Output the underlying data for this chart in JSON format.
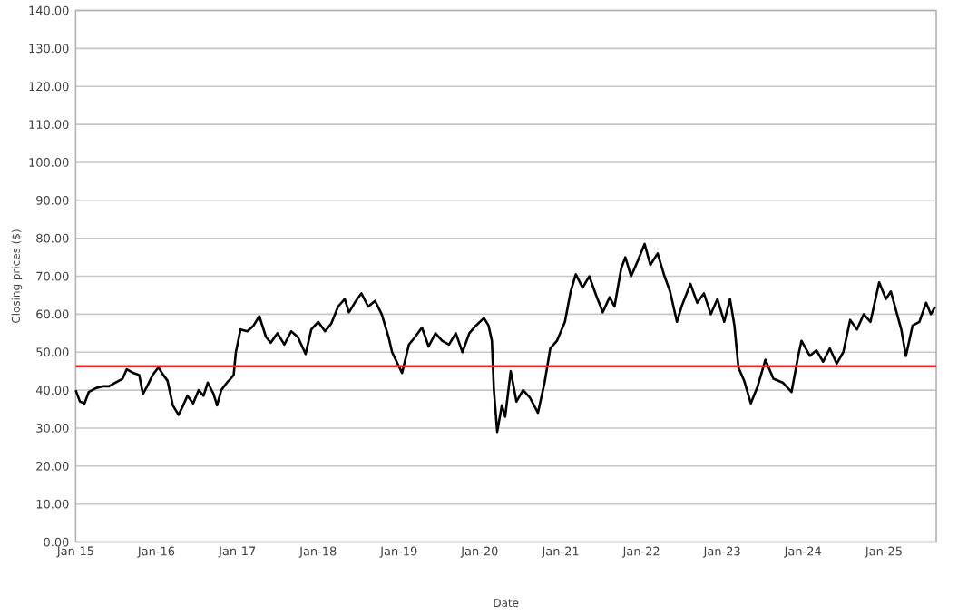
{
  "chart_data": {
    "type": "line",
    "xlabel": "Date",
    "ylabel": "Closing prices ($)",
    "grid": "y",
    "marker": "none",
    "line_style": "solid",
    "xlim": [
      "2015-01-01",
      "2025-08-25"
    ],
    "xticks": [
      {
        "value": "2015-01-01",
        "label": "Jan-15"
      },
      {
        "value": "2016-01-01",
        "label": "Jan-16"
      },
      {
        "value": "2017-01-01",
        "label": "Jan-17"
      },
      {
        "value": "2018-01-01",
        "label": "Jan-18"
      },
      {
        "value": "2019-01-01",
        "label": "Jan-19"
      },
      {
        "value": "2020-01-01",
        "label": "Jan-20"
      },
      {
        "value": "2021-01-01",
        "label": "Jan-21"
      },
      {
        "value": "2022-01-01",
        "label": "Jan-22"
      },
      {
        "value": "2023-01-01",
        "label": "Jan-23"
      },
      {
        "value": "2024-01-01",
        "label": "Jan-24"
      },
      {
        "value": "2025-01-01",
        "label": "Jan-25"
      }
    ],
    "ylim": [
      0,
      140
    ],
    "yticks": [
      {
        "value": 0,
        "label": "0.00"
      },
      {
        "value": 10,
        "label": "10.00"
      },
      {
        "value": 20,
        "label": "20.00"
      },
      {
        "value": 30,
        "label": "30.00"
      },
      {
        "value": 40,
        "label": "40.00"
      },
      {
        "value": 50,
        "label": "50.00"
      },
      {
        "value": 60,
        "label": "60.00"
      },
      {
        "value": 70,
        "label": "70.00"
      },
      {
        "value": 80,
        "label": "80.00"
      },
      {
        "value": 90,
        "label": "90.00"
      },
      {
        "value": 100,
        "label": "100.00"
      },
      {
        "value": 110,
        "label": "110.00"
      },
      {
        "value": 120,
        "label": "120.00"
      },
      {
        "value": 130,
        "label": "130.00"
      },
      {
        "value": 140,
        "label": "140.00"
      }
    ],
    "ref_lines": [
      {
        "axis": "y",
        "value": 46.3,
        "color": "#e8262a"
      }
    ],
    "x": [
      "2015-01-01",
      "2015-01-20",
      "2015-02-10",
      "2015-03-01",
      "2015-04-01",
      "2015-05-01",
      "2015-06-01",
      "2015-07-01",
      "2015-08-01",
      "2015-08-20",
      "2015-09-20",
      "2015-10-15",
      "2015-11-01",
      "2015-11-20",
      "2015-12-15",
      "2016-01-10",
      "2016-02-01",
      "2016-02-20",
      "2016-03-15",
      "2016-04-10",
      "2016-05-01",
      "2016-05-20",
      "2016-06-15",
      "2016-07-10",
      "2016-08-01",
      "2016-08-20",
      "2016-09-15",
      "2016-10-01",
      "2016-10-20",
      "2016-11-15",
      "2016-12-01",
      "2016-12-15",
      "2016-12-25",
      "2017-01-15",
      "2017-02-15",
      "2017-03-15",
      "2017-04-10",
      "2017-05-10",
      "2017-06-01",
      "2017-07-01",
      "2017-08-01",
      "2017-09-01",
      "2017-10-01",
      "2017-11-05",
      "2017-12-01",
      "2018-01-01",
      "2018-02-01",
      "2018-03-01",
      "2018-04-01",
      "2018-05-01",
      "2018-05-20",
      "2018-06-15",
      "2018-07-15",
      "2018-08-15",
      "2018-09-15",
      "2018-10-15",
      "2018-11-15",
      "2018-12-01",
      "2019-01-15",
      "2019-02-15",
      "2019-03-15",
      "2019-04-15",
      "2019-05-15",
      "2019-06-15",
      "2019-07-15",
      "2019-08-15",
      "2019-09-15",
      "2019-10-15",
      "2019-11-15",
      "2019-12-15",
      "2020-01-20",
      "2020-02-10",
      "2020-02-25",
      "2020-03-05",
      "2020-03-20",
      "2020-04-10",
      "2020-04-25",
      "2020-05-20",
      "2020-06-15",
      "2020-07-15",
      "2020-08-15",
      "2020-09-20",
      "2020-10-20",
      "2020-11-15",
      "2020-12-15",
      "2021-01-20",
      "2021-02-15",
      "2021-03-10",
      "2021-04-10",
      "2021-05-10",
      "2021-06-10",
      "2021-07-10",
      "2021-08-10",
      "2021-09-01",
      "2021-10-01",
      "2021-10-20",
      "2021-11-15",
      "2021-12-15",
      "2022-01-15",
      "2022-02-10",
      "2022-03-15",
      "2022-04-15",
      "2022-05-10",
      "2022-06-10",
      "2022-07-01",
      "2022-08-10",
      "2022-09-10",
      "2022-10-10",
      "2022-11-10",
      "2022-12-10",
      "2023-01-10",
      "2023-02-05",
      "2023-02-25",
      "2023-03-15",
      "2023-04-10",
      "2023-05-10",
      "2023-06-10",
      "2023-07-15",
      "2023-08-20",
      "2023-10-01",
      "2023-11-10",
      "2023-12-10",
      "2023-12-25",
      "2024-02-01",
      "2024-03-01",
      "2024-04-01",
      "2024-05-01",
      "2024-06-01",
      "2024-07-01",
      "2024-08-01",
      "2024-09-01",
      "2024-10-01",
      "2024-11-01",
      "2024-12-10",
      "2025-01-10",
      "2025-02-01",
      "2025-03-01",
      "2025-03-20",
      "2025-04-10",
      "2025-05-10",
      "2025-06-10",
      "2025-07-10",
      "2025-08-01",
      "2025-08-20"
    ],
    "series": [
      {
        "color": "#000000",
        "values": [
          40,
          37,
          36.5,
          39.5,
          40.5,
          41,
          41,
          42,
          43,
          45.5,
          44.5,
          44,
          39,
          41,
          44,
          46,
          44,
          42.5,
          36,
          33.5,
          36,
          38.5,
          36.5,
          40,
          38.5,
          42,
          39,
          36,
          40,
          42,
          43,
          44,
          50,
          56,
          55.5,
          57,
          59.5,
          54,
          52.5,
          55,
          52,
          55.5,
          54,
          49.5,
          56,
          58,
          55.5,
          57.5,
          62,
          64,
          60.5,
          63,
          65.5,
          62,
          63.5,
          60,
          54,
          50,
          44.5,
          52,
          54,
          56.5,
          51.5,
          55,
          53,
          52,
          55,
          50,
          55,
          57,
          59,
          57,
          53,
          40,
          29,
          36,
          33,
          45,
          37,
          40,
          38,
          34,
          42,
          51,
          53,
          58,
          66,
          70.5,
          67,
          70,
          65,
          60.5,
          64.5,
          62,
          72,
          75,
          70,
          74,
          78.5,
          73,
          76,
          70,
          66,
          58,
          62,
          68,
          63,
          65.5,
          60,
          64,
          58,
          64,
          57,
          46,
          42.5,
          36.5,
          41,
          48,
          43,
          42,
          39.5,
          49,
          53,
          49,
          50.5,
          47.5,
          51,
          47,
          50,
          58.5,
          56,
          60,
          58,
          68.4,
          64,
          66,
          60,
          56,
          49,
          57,
          58,
          63,
          60,
          62
        ]
      }
    ]
  }
}
